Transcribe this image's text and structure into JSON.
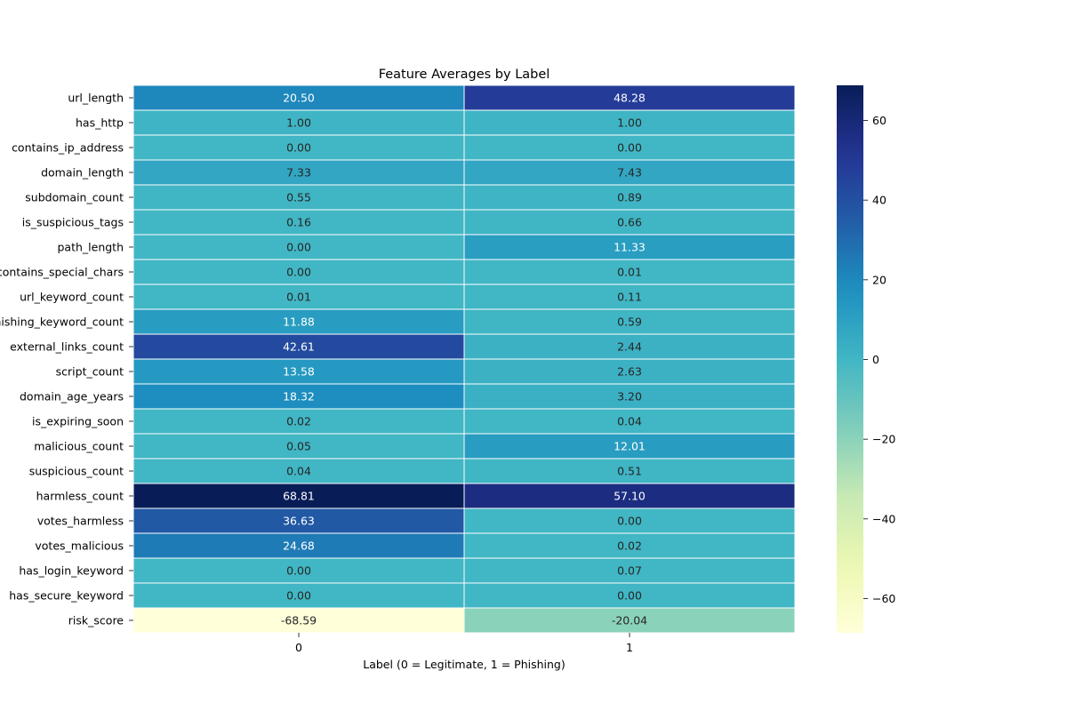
{
  "chart_data": {
    "type": "heatmap",
    "title": "Feature Averages by Label",
    "xlabel": "Label (0 = Legitimate, 1 = Phishing)",
    "ylabel": "",
    "x_categories": [
      "0",
      "1"
    ],
    "y_categories": [
      "url_length",
      "has_http",
      "contains_ip_address",
      "domain_length",
      "subdomain_count",
      "is_suspicious_tags",
      "path_length",
      "contains_special_chars",
      "url_keyword_count",
      "phishing_keyword_count",
      "external_links_count",
      "script_count",
      "domain_age_years",
      "is_expiring_soon",
      "malicious_count",
      "suspicious_count",
      "harmless_count",
      "votes_harmless",
      "votes_malicious",
      "has_login_keyword",
      "has_secure_keyword",
      "risk_score"
    ],
    "values": [
      [
        20.5,
        48.28
      ],
      [
        1.0,
        1.0
      ],
      [
        0.0,
        0.0
      ],
      [
        7.33,
        7.43
      ],
      [
        0.55,
        0.89
      ],
      [
        0.16,
        0.66
      ],
      [
        0.0,
        11.33
      ],
      [
        0.0,
        0.01
      ],
      [
        0.01,
        0.11
      ],
      [
        11.88,
        0.59
      ],
      [
        42.61,
        2.44
      ],
      [
        13.58,
        2.63
      ],
      [
        18.32,
        3.2
      ],
      [
        0.02,
        0.04
      ],
      [
        0.05,
        12.01
      ],
      [
        0.04,
        0.51
      ],
      [
        68.81,
        57.1
      ],
      [
        36.63,
        0.0
      ],
      [
        24.68,
        0.02
      ],
      [
        0.0,
        0.07
      ],
      [
        0.0,
        0.0
      ],
      [
        -68.59,
        -20.04
      ]
    ],
    "colormap": "YlGnBu",
    "annotations": true,
    "annotation_format": "0.00",
    "colorbar": {
      "range": [
        -68.59,
        68.81
      ],
      "ticks": [
        -60,
        -40,
        -20,
        0,
        20,
        40,
        60
      ],
      "tick_labels": [
        "−60",
        "−40",
        "−20",
        "0",
        "20",
        "40",
        "60"
      ]
    },
    "grid": true,
    "legend": "colorbar-right"
  }
}
